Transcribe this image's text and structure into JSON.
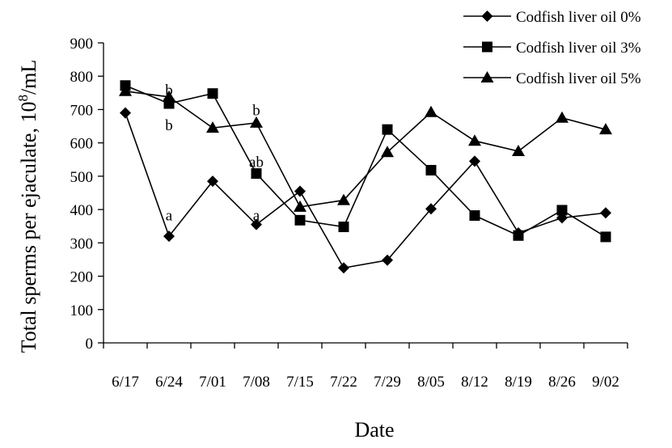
{
  "chart_data": {
    "type": "line",
    "title": "",
    "xlabel": "Date",
    "ylabel": "Total sperms per ejaculate, 10",
    "ylabel_sup": "8",
    "ylabel_unit": "/mL",
    "categories": [
      "6/17",
      "6/24",
      "7/01",
      "7/08",
      "7/15",
      "7/22",
      "7/29",
      "8/05",
      "8/12",
      "8/19",
      "8/26",
      "9/02"
    ],
    "ylim": [
      0,
      900
    ],
    "yticks": [
      "0",
      "100",
      "200",
      "300",
      "400",
      "500",
      "600",
      "700",
      "800",
      "900"
    ],
    "grid": false,
    "legend_position": "top-right",
    "series": [
      {
        "name": "Codfish liver oil 0%",
        "marker": "diamond",
        "values": [
          690,
          320,
          485,
          355,
          455,
          225,
          248,
          402,
          545,
          330,
          375,
          390
        ]
      },
      {
        "name": "Codfish liver oil 3%",
        "marker": "square",
        "values": [
          772,
          718,
          748,
          508,
          368,
          348,
          640,
          518,
          382,
          322,
          398,
          318
        ]
      },
      {
        "name": "Codfish liver oil 5%",
        "marker": "triangle",
        "values": [
          755,
          738,
          645,
          660,
          408,
          428,
          572,
          692,
          606,
          575,
          675,
          640
        ]
      }
    ],
    "annotations": [
      {
        "text": "b",
        "category": "6/24",
        "value": 760
      },
      {
        "text": "b",
        "category": "6/24",
        "value": 655
      },
      {
        "text": "a",
        "category": "6/24",
        "value": 385
      },
      {
        "text": "b",
        "category": "7/08",
        "value": 700
      },
      {
        "text": "ab",
        "category": "7/08",
        "value": 545
      },
      {
        "text": "a",
        "category": "7/08",
        "value": 385
      }
    ]
  }
}
